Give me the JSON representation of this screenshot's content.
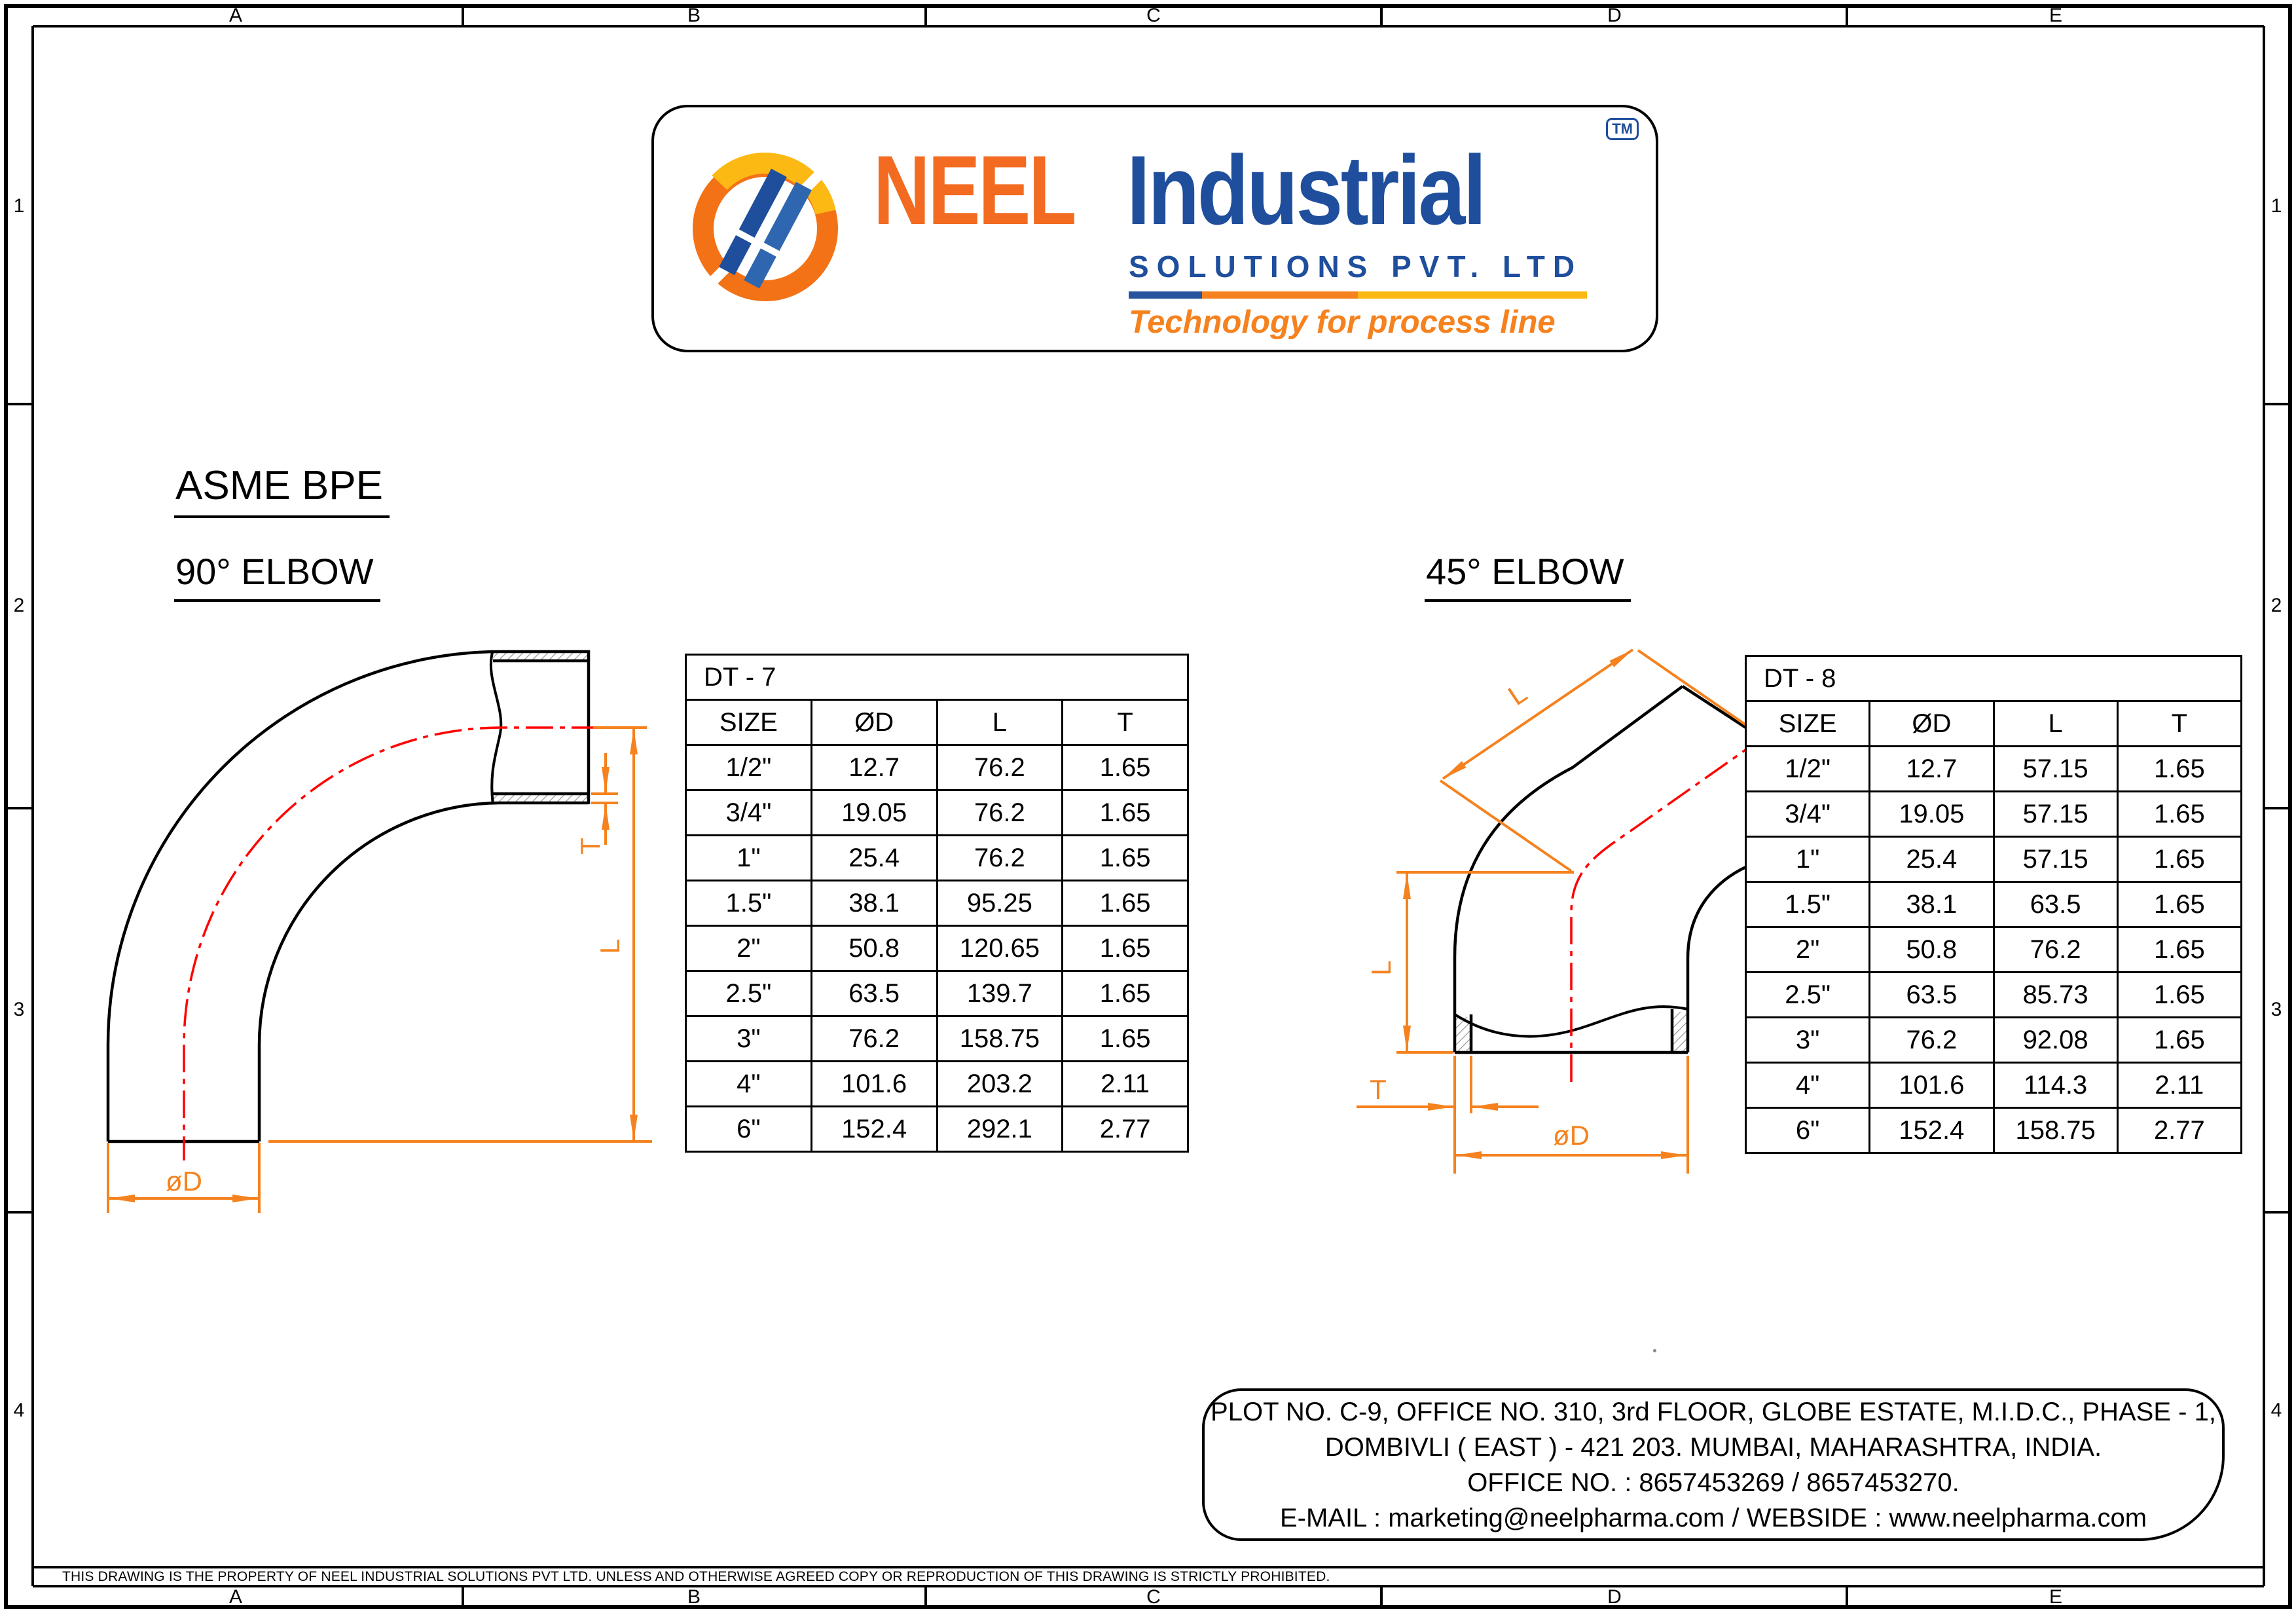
{
  "sheet": {
    "grid_columns": [
      "A",
      "B",
      "C",
      "D",
      "E"
    ],
    "grid_rows": [
      "1",
      "2",
      "3",
      "4"
    ],
    "disclaimer": "THIS DRAWING IS THE PROPERTY OF NEEL INDUSTRIAL SOLUTIONS PVT LTD. UNLESS AND OTHERWISE AGREED COPY OR REPRODUCTION OF THIS DRAWING IS STRICTLY PROHIBITED."
  },
  "logo": {
    "brand": "NEEL",
    "brand2": "Industrial",
    "trademark": "TM",
    "subtitle": "SOLUTIONS PVT. LTD",
    "tagline": "Technology for process line",
    "colors": {
      "orange": "#F26B21",
      "blue": "#1F4E9C",
      "yellow": "#FDB913"
    }
  },
  "headings": {
    "spec": "ASME BPE",
    "drawing_left": "90° ELBOW",
    "drawing_right": "45° ELBOW"
  },
  "dimension_labels": {
    "length": "L",
    "thickness": "T",
    "diameter": "øD"
  },
  "tables": [
    {
      "title": "DT - 7",
      "columns": [
        "SIZE",
        "ØD",
        "L",
        "T"
      ],
      "rows": [
        [
          "1/2\"",
          "12.7",
          "76.2",
          "1.65"
        ],
        [
          "3/4\"",
          "19.05",
          "76.2",
          "1.65"
        ],
        [
          "1\"",
          "25.4",
          "76.2",
          "1.65"
        ],
        [
          "1.5\"",
          "38.1",
          "95.25",
          "1.65"
        ],
        [
          "2\"",
          "50.8",
          "120.65",
          "1.65"
        ],
        [
          "2.5\"",
          "63.5",
          "139.7",
          "1.65"
        ],
        [
          "3\"",
          "76.2",
          "158.75",
          "1.65"
        ],
        [
          "4\"",
          "101.6",
          "203.2",
          "2.11"
        ],
        [
          "6\"",
          "152.4",
          "292.1",
          "2.77"
        ]
      ]
    },
    {
      "title": "DT - 8",
      "columns": [
        "SIZE",
        "ØD",
        "L",
        "T"
      ],
      "rows": [
        [
          "1/2\"",
          "12.7",
          "57.15",
          "1.65"
        ],
        [
          "3/4\"",
          "19.05",
          "57.15",
          "1.65"
        ],
        [
          "1\"",
          "25.4",
          "57.15",
          "1.65"
        ],
        [
          "1.5\"",
          "38.1",
          "63.5",
          "1.65"
        ],
        [
          "2\"",
          "50.8",
          "76.2",
          "1.65"
        ],
        [
          "2.5\"",
          "63.5",
          "85.73",
          "1.65"
        ],
        [
          "3\"",
          "76.2",
          "92.08",
          "1.65"
        ],
        [
          "4\"",
          "101.6",
          "114.3",
          "2.11"
        ],
        [
          "6\"",
          "152.4",
          "158.75",
          "2.77"
        ]
      ]
    }
  ],
  "address": {
    "lines": [
      "PLOT NO. C-9, OFFICE NO. 310, 3rd FLOOR, GLOBE ESTATE, M.I.D.C., PHASE - 1,",
      "DOMBIVLI ( EAST ) - 421 203. MUMBAI, MAHARASHTRA, INDIA.",
      "OFFICE NO. : 8657453269 / 8657453270.",
      "E-MAIL : marketing@neelpharma.com / WEBSIDE : www.neelpharma.com"
    ]
  },
  "colors": {
    "accent_orange": "#F5821F",
    "centerline_red": "#FF0000",
    "line_black": "#000000"
  }
}
